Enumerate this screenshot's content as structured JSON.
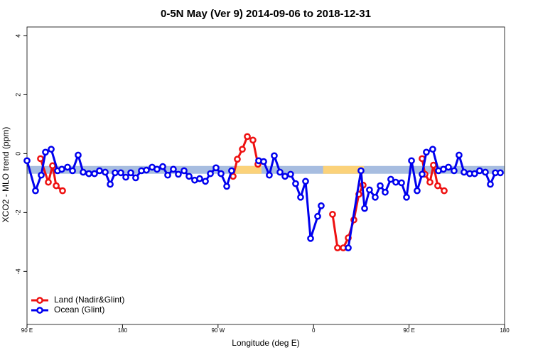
{
  "chart_data": {
    "type": "line",
    "title": "0-5N May (Ver 9)   2014-09-06 to 2018-12-31",
    "x_label": "Longitude (deg E)",
    "y_label": "XCO2 - MLO trend (ppm)",
    "xlim": [
      90,
      540
    ],
    "ylim": [
      -5.8,
      4.3
    ],
    "xticks": [
      {
        "value": 90,
        "label": "90 E"
      },
      180,
      {
        "value": 270,
        "label": "90 W"
      },
      {
        "value": 360,
        "label": "0"
      },
      {
        "value": 450,
        "label": "90 E"
      },
      {
        "value": 540,
        "label": "180"
      }
    ],
    "yticks": [
      -4,
      -2,
      0,
      2,
      4
    ],
    "legend": "bottom-left",
    "band": {
      "value": -0.55,
      "color": "#a7bde0",
      "segments": [
        {
          "x": [
            285.5,
            311
          ],
          "color": "#fbd27a"
        },
        {
          "x": [
            369,
            407.4
          ],
          "color": "#fbd27a"
        }
      ]
    },
    "series": [
      {
        "name": "Land (Nadir&Glint)",
        "color": "#ee1111",
        "x": [
          102.7,
          110.1,
          114.1,
          117.5,
          123.5,
          null,
          284.2,
          288.2,
          292.9,
          297.6,
          302.9,
          307.6,
          null,
          377.9,
          382.6,
          388.0,
          392.7,
          398.0,
          402.7,
          406.7,
          null,
          462.3,
          465.0,
          469.7,
          473.0,
          477.0,
          483.1
        ],
        "values": [
          -0.17,
          -0.97,
          -0.41,
          -1.09,
          -1.26,
          null,
          -0.77,
          -0.19,
          0.15,
          0.58,
          0.46,
          -0.36,
          null,
          -2.06,
          -3.2,
          -3.2,
          -2.86,
          -2.25,
          -1.38,
          -1.07,
          null,
          -0.17,
          -0.7,
          -0.97,
          -0.39,
          -1.09,
          -1.26
        ]
      },
      {
        "name": "Ocean (Glint)",
        "color": "#0000ee",
        "x": [
          90.0,
          98.0,
          103.4,
          107.4,
          112.8,
          118.8,
          122.8,
          128.2,
          132.9,
          138.2,
          142.9,
          148.3,
          153.6,
          158.3,
          163.7,
          168.4,
          173.0,
          178.4,
          183.1,
          187.8,
          192.4,
          197.8,
          202.5,
          207.9,
          212.5,
          217.9,
          222.6,
          227.9,
          232.6,
          238.0,
          242.7,
          248.0,
          252.7,
          258.1,
          262.8,
          268.1,
          272.8,
          278.2,
          282.8,
          null,
          308.3,
          313.0,
          318.3,
          323.0,
          328.4,
          333.1,
          338.4,
          343.1,
          347.8,
          352.5,
          357.2,
          363.9,
          367.2,
          null,
          392.7,
          404.7,
          408.1,
          412.7,
          418.1,
          422.8,
          427.5,
          432.8,
          437.5,
          442.9,
          447.6,
          452.3,
          457.6,
          462.3,
          466.3,
          472.3,
          477.7,
          482.4,
          487.1,
          492.4,
          497.1,
          501.8,
          507.2,
          511.8,
          516.5,
          521.9,
          526.6,
          531.3,
          536.0
        ],
        "values": [
          -0.24,
          -1.26,
          -0.73,
          0.05,
          0.15,
          -0.58,
          -0.53,
          -0.46,
          -0.58,
          -0.05,
          -0.63,
          -0.68,
          -0.68,
          -0.58,
          -0.63,
          -1.04,
          -0.65,
          -0.65,
          -0.8,
          -0.65,
          -0.82,
          -0.58,
          -0.56,
          -0.46,
          -0.53,
          -0.44,
          -0.73,
          -0.53,
          -0.7,
          -0.58,
          -0.77,
          -0.9,
          -0.85,
          -0.94,
          -0.68,
          -0.48,
          -0.68,
          -1.11,
          -0.58,
          null,
          -0.24,
          -0.27,
          -0.73,
          -0.07,
          -0.63,
          -0.77,
          -0.7,
          -1.02,
          -1.48,
          -0.94,
          -2.88,
          -2.13,
          -1.77,
          null,
          -3.2,
          -0.58,
          -1.86,
          -1.23,
          -1.48,
          -1.09,
          -1.31,
          -0.87,
          -0.97,
          -0.99,
          -1.48,
          -0.24,
          -1.26,
          -0.7,
          0.05,
          0.15,
          -0.58,
          -0.53,
          -0.46,
          -0.58,
          -0.05,
          -0.63,
          -0.68,
          -0.68,
          -0.58,
          -0.63,
          -1.04,
          -0.65,
          -0.65
        ]
      }
    ]
  }
}
